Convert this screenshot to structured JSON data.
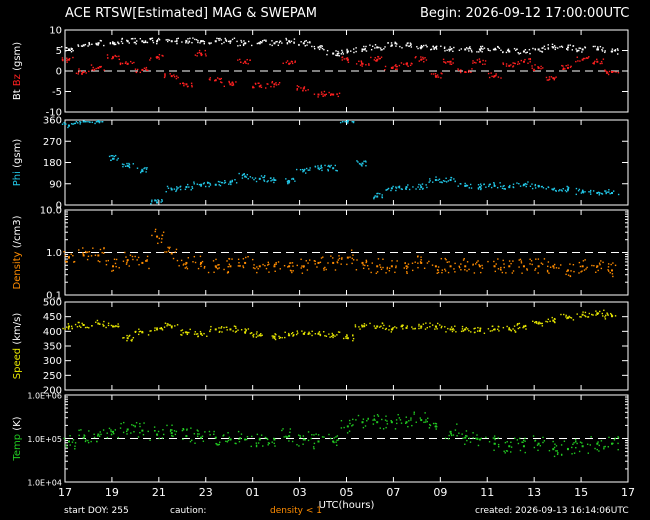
{
  "header": {
    "title": "ACE RTSW[Estimated] MAG & SWEPAM",
    "begin": "Begin: 2026-09-12 17:00:00UTC"
  },
  "footer": {
    "start_doy": "start DOY: 255",
    "caution_label": "caution:",
    "caution_value": "density < 1",
    "created": "created: 2026-09-13 16:14:06UTC"
  },
  "colors": {
    "bt": "#ffffff",
    "bz": "#ff2020",
    "phi": "#22c8e8",
    "density": "#ff8c00",
    "speed": "#e6e600",
    "temp": "#22cc22",
    "frame": "#ffffff",
    "dashed": "#ffffff"
  },
  "chart_data": {
    "type": "scatter",
    "xlabel": "UTC(hours)",
    "x_ticks": [
      "17",
      "19",
      "21",
      "23",
      "01",
      "03",
      "05",
      "07",
      "09",
      "11",
      "13",
      "15",
      "17"
    ],
    "panels": [
      {
        "id": "mag",
        "ylabel_parts": [
          {
            "text": "Bt",
            "color": "#ffffff"
          },
          {
            "text": " Bz",
            "color": "#ff2020"
          },
          {
            "text": " (gsm)",
            "color": "#ffffff"
          }
        ],
        "ylim": [
          -10,
          10
        ],
        "scale": "linear",
        "ticks": [
          "10",
          "5",
          "0",
          "-5",
          "-10"
        ],
        "tick_values": [
          10,
          5,
          0,
          -5,
          -10
        ],
        "dashed": [
          0
        ],
        "series": [
          {
            "key": "bt",
            "color": "#ffffff",
            "values": [
              5.5,
              6.5,
              7,
              7,
              7.5,
              7.5,
              7.5,
              7.5,
              7.5,
              7.5,
              7.5,
              7.5,
              7,
              7,
              7,
              7.5,
              7,
              6,
              4.5,
              5,
              5.5,
              6,
              6.5,
              6.5,
              6,
              6,
              5.5,
              5.5,
              5.5,
              5.5,
              5,
              5,
              5.5,
              6,
              6,
              5.5,
              5.5,
              5
            ]
          },
          {
            "key": "bz",
            "color": "#ff2020",
            "values": [
              3,
              0,
              1,
              3.5,
              2,
              0.5,
              3.5,
              -1,
              -3,
              4.5,
              -2,
              -3,
              2.5,
              -3.5,
              -3,
              2,
              -4,
              -5.5,
              -5.5,
              3,
              2,
              3,
              1,
              2,
              3,
              -1,
              2.5,
              0,
              2.5,
              -1,
              1.5,
              2.5,
              1,
              -1.5,
              1,
              3,
              2.5,
              0
            ]
          }
        ]
      },
      {
        "id": "phi",
        "ylabel_parts": [
          {
            "text": "Phi",
            "color": "#22c8e8"
          },
          {
            "text": " (gsm)",
            "color": "#ffffff"
          }
        ],
        "ylim": [
          0,
          360
        ],
        "scale": "linear",
        "ticks": [
          "360",
          "270",
          "180",
          "90",
          "0"
        ],
        "tick_values": [
          360,
          270,
          180,
          90,
          0
        ],
        "dashed": [],
        "series": [
          {
            "key": "phi",
            "color": "#22c8e8",
            "values": [
              340,
              358,
              360,
              200,
              170,
              150,
              15,
              70,
              80,
              90,
              90,
              100,
              125,
              115,
              110,
              105,
              150,
              160,
              160,
              360,
              180,
              40,
              75,
              80,
              80,
              110,
              110,
              85,
              80,
              85,
              80,
              90,
              85,
              70,
              70,
              60,
              55,
              55
            ]
          }
        ]
      },
      {
        "id": "density",
        "ylabel_parts": [
          {
            "text": "Density",
            "color": "#ff8c00"
          },
          {
            "text": " (/cm3)",
            "color": "#ffffff"
          }
        ],
        "ylim": [
          0.1,
          10
        ],
        "scale": "log",
        "ticks": [
          "10.0",
          "1.0",
          "0.1"
        ],
        "tick_values": [
          10,
          1,
          0.1
        ],
        "dashed": [
          1
        ],
        "series": [
          {
            "key": "density",
            "color": "#ff8c00",
            "values": [
              0.8,
              0.9,
              0.9,
              0.5,
              0.7,
              0.6,
              2.5,
              1.0,
              0.6,
              0.6,
              0.5,
              0.5,
              0.6,
              0.5,
              0.5,
              0.5,
              0.5,
              0.6,
              0.6,
              0.8,
              0.6,
              0.5,
              0.5,
              0.5,
              0.6,
              0.5,
              0.5,
              0.5,
              0.5,
              0.5,
              0.5,
              0.5,
              0.5,
              0.5,
              0.4,
              0.5,
              0.5,
              0.4
            ]
          }
        ]
      },
      {
        "id": "speed",
        "ylabel_parts": [
          {
            "text": "Speed",
            "color": "#e6e600"
          },
          {
            "text": " (km/s)",
            "color": "#ffffff"
          }
        ],
        "ylim": [
          200,
          500
        ],
        "scale": "linear",
        "ticks": [
          "500",
          "450",
          "400",
          "350",
          "300",
          "250",
          "200"
        ],
        "tick_values": [
          500,
          450,
          400,
          350,
          300,
          250,
          200
        ],
        "dashed": [],
        "series": [
          {
            "key": "speed",
            "color": "#e6e600",
            "values": [
              420,
              425,
              430,
              420,
              380,
              400,
              410,
              420,
              400,
              395,
              410,
              410,
              400,
              390,
              385,
              390,
              395,
              395,
              390,
              380,
              420,
              420,
              410,
              415,
              420,
              420,
              410,
              410,
              405,
              410,
              410,
              420,
              430,
              440,
              450,
              460,
              465,
              455
            ]
          }
        ]
      },
      {
        "id": "temp",
        "ylabel_parts": [
          {
            "text": "Temp",
            "color": "#22cc22"
          },
          {
            "text": " (K)",
            "color": "#ffffff"
          }
        ],
        "ylim": [
          10000,
          1000000
        ],
        "scale": "log",
        "ticks": [
          "1.0E+06",
          "1.0E+05",
          "1.0E+04"
        ],
        "tick_values": [
          1000000,
          100000,
          10000
        ],
        "dashed": [
          100000
        ],
        "series": [
          {
            "key": "temp",
            "color": "#22cc22",
            "values": [
              90000,
              110000,
              130000,
              150000,
              170000,
              160000,
              130000,
              140000,
              120000,
              110000,
              110000,
              100000,
              100000,
              100000,
              100000,
              120000,
              100000,
              90000,
              90000,
              200000,
              250000,
              250000,
              250000,
              250000,
              280000,
              200000,
              150000,
              110000,
              100000,
              80000,
              70000,
              70000,
              80000,
              60000,
              60000,
              70000,
              80000,
              80000
            ]
          }
        ]
      }
    ]
  }
}
